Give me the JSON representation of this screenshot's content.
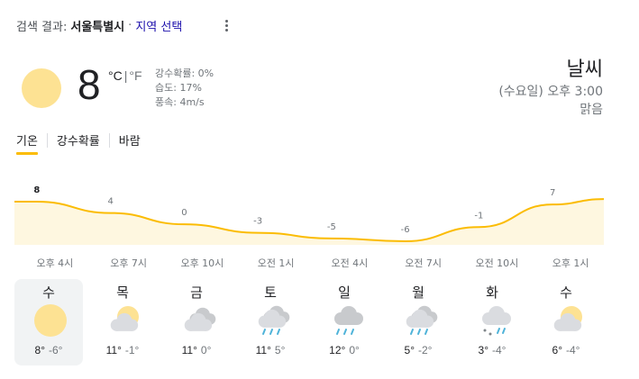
{
  "header": {
    "prefix": "검색 결과:",
    "location": "서울특별시",
    "separator": "·",
    "change_region": "지역 선택"
  },
  "current": {
    "temperature": "8",
    "unit_c": "°C",
    "unit_sep": "|",
    "unit_f": "°F",
    "precip": "강수확률: 0%",
    "humidity": "습도: 17%",
    "wind": "풍속: 4m/s",
    "icon": "sun-icon"
  },
  "summary": {
    "title": "날씨",
    "time": "(수요일) 오후 3:00",
    "condition": "맑음"
  },
  "tabs": [
    {
      "label": "기온",
      "active": true
    },
    {
      "label": "강수확률",
      "active": false
    },
    {
      "label": "바람",
      "active": false
    }
  ],
  "colors": {
    "accent": "#fbbc04",
    "chart_fill": "#fef7e0",
    "sun": "#fde293",
    "cloud": "#dadce0",
    "rain": "#4fb3d9"
  },
  "chart_data": {
    "type": "area",
    "times": [
      "오후 4시",
      "오후 7시",
      "오후 10시",
      "오전 1시",
      "오전 4시",
      "오전 7시",
      "오전 10시",
      "오후 1시"
    ],
    "values": [
      8,
      4,
      0,
      -3,
      -5,
      -6,
      -1,
      7
    ],
    "value_labels": [
      "8",
      "4",
      "0",
      "-3",
      "-5",
      "-6",
      "-1",
      "7"
    ]
  },
  "days": [
    {
      "name": "수",
      "icon": "sun-icon",
      "hi": "8°",
      "lo": "-6°",
      "active": true
    },
    {
      "name": "목",
      "icon": "partly-cloudy-icon",
      "hi": "11°",
      "lo": "-1°",
      "active": false
    },
    {
      "name": "금",
      "icon": "cloudy-icon",
      "hi": "11°",
      "lo": "0°",
      "active": false
    },
    {
      "name": "토",
      "icon": "rain-cloud-icon",
      "hi": "11°",
      "lo": "5°",
      "active": false
    },
    {
      "name": "일",
      "icon": "rain-icon",
      "hi": "12°",
      "lo": "0°",
      "active": false
    },
    {
      "name": "월",
      "icon": "rain-cloud-icon",
      "hi": "5°",
      "lo": "-2°",
      "active": false
    },
    {
      "name": "화",
      "icon": "snow-rain-icon",
      "hi": "3°",
      "lo": "-4°",
      "active": false
    },
    {
      "name": "수",
      "icon": "partly-cloudy-icon",
      "hi": "6°",
      "lo": "-4°",
      "active": false
    }
  ]
}
